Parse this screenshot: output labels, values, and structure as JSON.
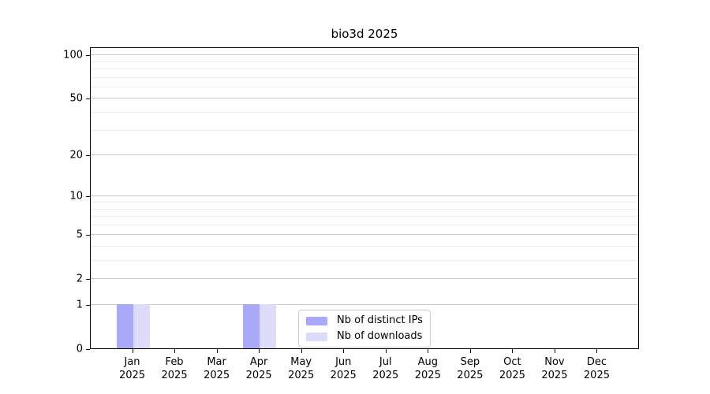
{
  "chart_data": {
    "type": "bar",
    "title": "bio3d 2025",
    "categories": [
      "Jan",
      "Feb",
      "Mar",
      "Apr",
      "May",
      "Jun",
      "Jul",
      "Aug",
      "Sep",
      "Oct",
      "Nov",
      "Dec"
    ],
    "category_year": "2025",
    "series": [
      {
        "name": "Nb of distinct IPs",
        "color": "#a9a9f7",
        "values": [
          1,
          0,
          0,
          1,
          0,
          0,
          0,
          0,
          0,
          0,
          0,
          0
        ]
      },
      {
        "name": "Nb of downloads",
        "color": "#dcdcfa",
        "values": [
          1,
          0,
          0,
          1,
          0,
          0,
          0,
          0,
          0,
          0,
          0,
          0
        ]
      }
    ],
    "xlabel": "",
    "ylabel": "",
    "y_axis": {
      "scale": "log10(1+y)",
      "tick_values": [
        0,
        1,
        2,
        5,
        10,
        20,
        50,
        100
      ],
      "minor_gridline_values": [
        3,
        4,
        6,
        7,
        8,
        9,
        30,
        40,
        60,
        70,
        80,
        90
      ],
      "range_max": 113
    },
    "legend": {
      "position": "bottom-center-inside"
    },
    "grid": "horizontal",
    "colors": {
      "grid_major": "#c9c9c9",
      "grid_minor": "#ececec",
      "spine": "#000000",
      "legend_border": "#cccccc",
      "background": "#ffffff",
      "text": "#000000"
    }
  }
}
